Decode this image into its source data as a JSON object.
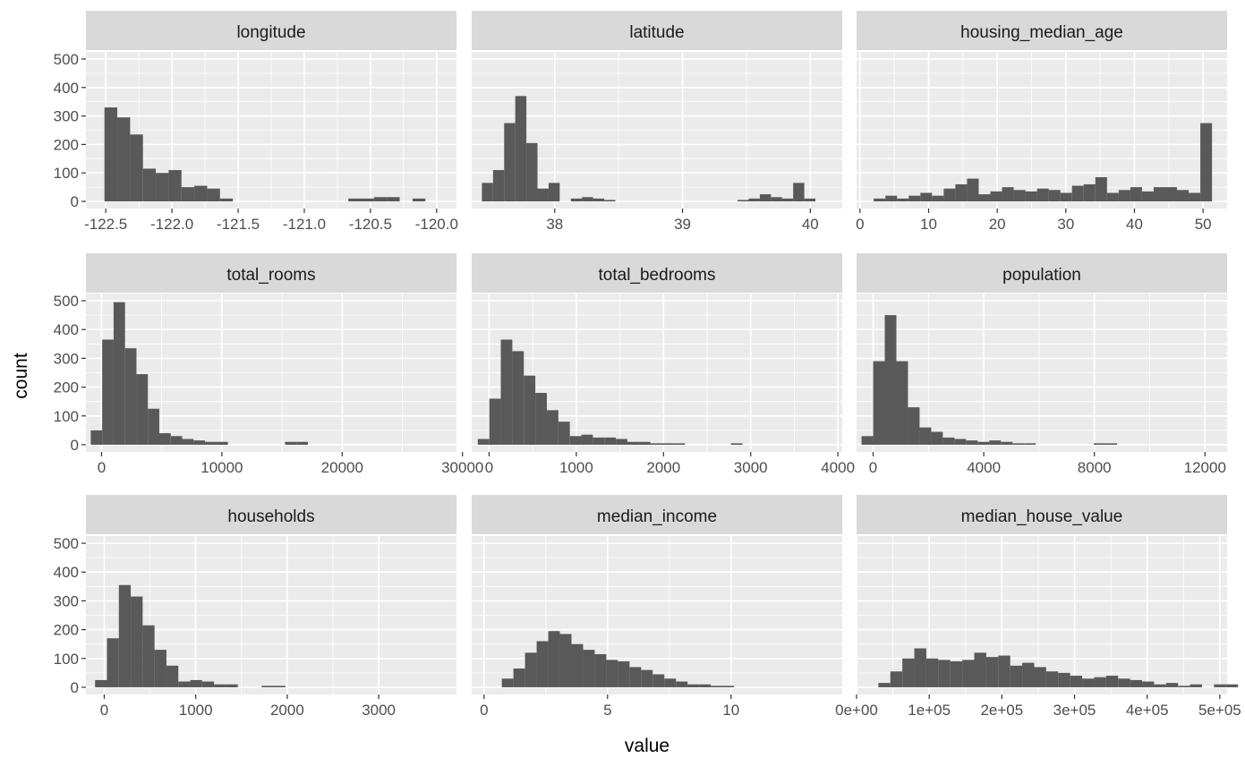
{
  "chart_data": {
    "type": "histogram-facet",
    "xlabel": "value",
    "ylabel": "count",
    "y_ticks": [
      0,
      100,
      200,
      300,
      400,
      500
    ],
    "ylim": [
      -25,
      525
    ],
    "bar_color": "#595959",
    "panel_bg": "#ebebeb",
    "strip_bg": "#d9d9d9",
    "grid_color": "#ffffff",
    "panels": [
      {
        "name": "longitude",
        "xlim": [
          -122.65,
          -119.85
        ],
        "x_ticks": [
          -122.5,
          -122.0,
          -121.5,
          -121.0,
          -120.5,
          -120.0
        ],
        "x_tick_labels": [
          "-122.5",
          "-122.0",
          "-121.5",
          "-121.0",
          "-120.5",
          "-120.0"
        ],
        "bin_start": -122.51,
        "bin_width": 0.097,
        "counts": [
          330,
          295,
          235,
          115,
          100,
          110,
          50,
          55,
          45,
          10,
          0,
          0,
          0,
          0,
          0,
          0,
          0,
          0,
          0,
          10,
          10,
          15,
          15,
          0,
          10
        ]
      },
      {
        "name": "latitude",
        "xlim": [
          37.35,
          40.25
        ],
        "x_ticks": [
          38,
          39,
          40
        ],
        "x_tick_labels": [
          "38",
          "39",
          "40"
        ],
        "bin_start": 37.43,
        "bin_width": 0.087,
        "counts": [
          65,
          110,
          275,
          370,
          205,
          45,
          65,
          0,
          10,
          15,
          10,
          5,
          0,
          0,
          0,
          0,
          0,
          0,
          0,
          0,
          0,
          0,
          0,
          5,
          10,
          25,
          15,
          10,
          65,
          10
        ]
      },
      {
        "name": "housing_median_age",
        "xlim": [
          -0.5,
          53.5
        ],
        "x_ticks": [
          0,
          10,
          20,
          30,
          40,
          50
        ],
        "x_tick_labels": [
          "0",
          "10",
          "20",
          "30",
          "40",
          "50"
        ],
        "bin_start": 2.0,
        "bin_width": 1.7,
        "counts": [
          10,
          20,
          10,
          20,
          30,
          20,
          45,
          60,
          80,
          25,
          35,
          50,
          40,
          35,
          45,
          40,
          30,
          55,
          60,
          85,
          30,
          40,
          50,
          35,
          50,
          50,
          40,
          30,
          275
        ]
      },
      {
        "name": "total_rooms",
        "xlim": [
          -1300,
          29500
        ],
        "x_ticks": [
          0,
          10000,
          20000,
          30000
        ],
        "x_tick_labels": [
          "0",
          "10000",
          "20000",
          "30000"
        ],
        "bin_start": -900,
        "bin_width": 950,
        "counts": [
          50,
          365,
          495,
          335,
          245,
          125,
          40,
          30,
          20,
          15,
          10,
          10,
          0,
          0,
          0,
          0,
          0,
          10,
          10
        ]
      },
      {
        "name": "total_bedrooms",
        "xlim": [
          -200,
          4050
        ],
        "x_ticks": [
          0,
          1000,
          2000,
          3000,
          4000
        ],
        "x_tick_labels": [
          "0",
          "1000",
          "2000",
          "3000",
          "4000"
        ],
        "bin_start": -130,
        "bin_width": 132,
        "counts": [
          20,
          160,
          365,
          325,
          240,
          180,
          120,
          80,
          30,
          35,
          25,
          25,
          20,
          10,
          10,
          5,
          5,
          5,
          0,
          0,
          0,
          0,
          5
        ]
      },
      {
        "name": "population",
        "xlim": [
          -600,
          12800
        ],
        "x_ticks": [
          0,
          4000,
          8000,
          12000
        ],
        "x_tick_labels": [
          "0",
          "4000",
          "8000",
          "12000"
        ],
        "bin_start": -420,
        "bin_width": 420,
        "counts": [
          30,
          290,
          450,
          290,
          130,
          60,
          45,
          25,
          20,
          15,
          10,
          15,
          10,
          5,
          5,
          0,
          0,
          0,
          0,
          0,
          5,
          5
        ]
      },
      {
        "name": "households",
        "xlim": [
          -200,
          3850
        ],
        "x_ticks": [
          0,
          1000,
          2000,
          3000
        ],
        "x_tick_labels": [
          "0",
          "1000",
          "2000",
          "3000"
        ],
        "bin_start": -100,
        "bin_width": 130,
        "counts": [
          25,
          170,
          355,
          315,
          215,
          130,
          75,
          20,
          25,
          20,
          10,
          10,
          0,
          0,
          5,
          5
        ]
      },
      {
        "name": "median_income",
        "xlim": [
          -0.5,
          14.5
        ],
        "x_ticks": [
          0,
          5,
          10
        ],
        "x_tick_labels": [
          "0",
          "5",
          "10"
        ],
        "bin_start": 0.72,
        "bin_width": 0.47,
        "counts": [
          30,
          65,
          120,
          160,
          195,
          185,
          150,
          130,
          115,
          95,
          90,
          70,
          60,
          45,
          30,
          20,
          10,
          10,
          5,
          5
        ]
      },
      {
        "name": "median_house_value",
        "xlim": [
          0,
          510000
        ],
        "x_ticks": [
          0,
          100000,
          200000,
          300000,
          400000,
          500000
        ],
        "x_tick_labels": [
          "0e+00",
          "1e+05",
          "2e+05",
          "3e+05",
          "4e+05",
          "5e+05"
        ],
        "bin_start": 30000,
        "bin_width": 16500,
        "counts": [
          15,
          55,
          100,
          135,
          100,
          95,
          90,
          95,
          120,
          105,
          110,
          75,
          85,
          70,
          55,
          50,
          40,
          30,
          35,
          40,
          30,
          25,
          20,
          10,
          15,
          5,
          10,
          0,
          10,
          10
        ]
      }
    ]
  }
}
